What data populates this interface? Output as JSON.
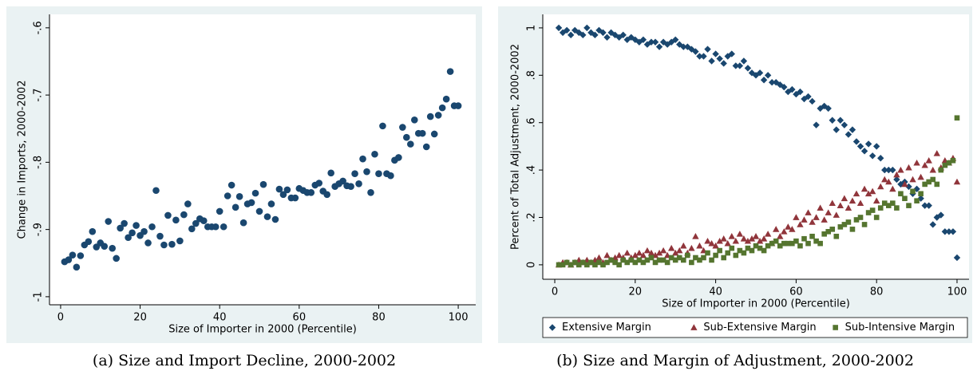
{
  "chart_data": [
    {
      "type": "scatter",
      "caption": "(a) Size and Import Decline, 2000-2002",
      "x_label": "Size of Importer in 2000 (Percentile)",
      "y_label": "Change in Imports, 2000-2002",
      "xlim": [
        -2.8,
        104.4
      ],
      "ylim": [
        -1.012,
        -0.58
      ],
      "xticks": [
        0,
        20,
        40,
        60,
        80,
        100
      ],
      "yticks": [
        {
          "value": -1,
          "label": "-1"
        },
        {
          "value": -0.9,
          "label": "-.9"
        },
        {
          "value": -0.8,
          "label": "-.8"
        },
        {
          "value": -0.7,
          "label": "-.7"
        },
        {
          "value": -0.6,
          "label": "-.6"
        }
      ],
      "grid": false,
      "series": [
        {
          "color": "#1a476f",
          "marker": "circle",
          "x": [
            1,
            2,
            3,
            4,
            5,
            6,
            7,
            8,
            9,
            10,
            11,
            12,
            13,
            14,
            15,
            16,
            17,
            18,
            19,
            20,
            21,
            22,
            23,
            24,
            25,
            26,
            27,
            28,
            29,
            30,
            31,
            32,
            33,
            34,
            35,
            36,
            37,
            38,
            39,
            40,
            41,
            42,
            43,
            44,
            45,
            46,
            47,
            48,
            49,
            50,
            51,
            52,
            53,
            54,
            55,
            56,
            57,
            58,
            59,
            60,
            61,
            62,
            63,
            64,
            65,
            66,
            67,
            68,
            69,
            70,
            71,
            72,
            73,
            74,
            75,
            76,
            77,
            78,
            79,
            80,
            81,
            82,
            83,
            84,
            85,
            86,
            87,
            88,
            89,
            90,
            91,
            92,
            93,
            94,
            95,
            96,
            97,
            98,
            99,
            100
          ],
          "values": [
            -0.948,
            -0.945,
            -0.938,
            -0.956,
            -0.939,
            -0.923,
            -0.918,
            -0.903,
            -0.926,
            -0.92,
            -0.925,
            -0.888,
            -0.928,
            -0.943,
            -0.898,
            -0.891,
            -0.912,
            -0.905,
            -0.894,
            -0.909,
            -0.903,
            -0.92,
            -0.896,
            -0.842,
            -0.91,
            -0.923,
            -0.879,
            -0.922,
            -0.886,
            -0.917,
            -0.878,
            -0.862,
            -0.899,
            -0.891,
            -0.884,
            -0.887,
            -0.896,
            -0.896,
            -0.896,
            -0.873,
            -0.896,
            -0.85,
            -0.834,
            -0.867,
            -0.851,
            -0.89,
            -0.862,
            -0.86,
            -0.846,
            -0.873,
            -0.833,
            -0.881,
            -0.862,
            -0.885,
            -0.84,
            -0.848,
            -0.841,
            -0.853,
            -0.853,
            -0.839,
            -0.842,
            -0.845,
            -0.845,
            -0.834,
            -0.831,
            -0.843,
            -0.848,
            -0.816,
            -0.836,
            -0.832,
            -0.828,
            -0.835,
            -0.836,
            -0.817,
            -0.832,
            -0.795,
            -0.814,
            -0.845,
            -0.788,
            -0.817,
            -0.746,
            -0.817,
            -0.82,
            -0.797,
            -0.793,
            -0.748,
            -0.763,
            -0.773,
            -0.737,
            -0.757,
            -0.757,
            -0.777,
            -0.732,
            -0.758,
            -0.73,
            -0.719,
            -0.706,
            -0.665,
            -0.716,
            -0.716
          ]
        }
      ]
    },
    {
      "type": "scatter",
      "caption": "(b) Size and Margin of Adjustment, 2000-2002",
      "x_label": "Size of Importer in 2000 (Percentile)",
      "y_label": "Percent of Total Adjustment, 2000-2002",
      "xlim": [
        -2.98,
        102.98
      ],
      "ylim": [
        -0.061,
        1.057
      ],
      "xticks": [
        0,
        20,
        40,
        60,
        80,
        100
      ],
      "yticks": [
        0,
        {
          "value": 0.2,
          "label": ".2"
        },
        {
          "value": 0.4,
          "label": ".4"
        },
        {
          "value": 0.6,
          "label": ".6"
        },
        {
          "value": 0.8,
          "label": ".8"
        },
        1
      ],
      "grid": false,
      "legend": "bottom",
      "series": [
        {
          "name": "Extensive Margin",
          "color": "#1a476f",
          "marker": "diamond",
          "x": [
            1,
            2,
            3,
            4,
            5,
            6,
            7,
            8,
            9,
            10,
            11,
            12,
            13,
            14,
            15,
            16,
            17,
            18,
            19,
            20,
            21,
            22,
            23,
            24,
            25,
            26,
            27,
            28,
            29,
            30,
            31,
            32,
            33,
            34,
            35,
            36,
            37,
            38,
            39,
            40,
            41,
            42,
            43,
            44,
            45,
            46,
            47,
            48,
            49,
            50,
            51,
            52,
            53,
            54,
            55,
            56,
            57,
            58,
            59,
            60,
            61,
            62,
            63,
            64,
            65,
            66,
            67,
            68,
            69,
            70,
            71,
            72,
            73,
            74,
            75,
            76,
            77,
            78,
            79,
            80,
            81,
            82,
            83,
            84,
            85,
            86,
            87,
            88,
            89,
            90,
            91,
            92,
            93,
            94,
            95,
            96,
            97,
            98,
            99,
            100
          ],
          "values": [
            1.0,
            0.98,
            0.99,
            0.97,
            0.99,
            0.98,
            0.97,
            1.0,
            0.98,
            0.97,
            0.99,
            0.98,
            0.96,
            0.98,
            0.97,
            0.96,
            0.97,
            0.95,
            0.96,
            0.95,
            0.94,
            0.95,
            0.93,
            0.94,
            0.94,
            0.92,
            0.94,
            0.93,
            0.94,
            0.95,
            0.93,
            0.92,
            0.92,
            0.91,
            0.9,
            0.88,
            0.88,
            0.91,
            0.86,
            0.89,
            0.87,
            0.85,
            0.88,
            0.89,
            0.84,
            0.84,
            0.86,
            0.83,
            0.81,
            0.8,
            0.81,
            0.78,
            0.8,
            0.77,
            0.77,
            0.76,
            0.75,
            0.73,
            0.74,
            0.72,
            0.73,
            0.7,
            0.71,
            0.69,
            0.59,
            0.66,
            0.67,
            0.66,
            0.61,
            0.57,
            0.61,
            0.59,
            0.55,
            0.57,
            0.52,
            0.5,
            0.48,
            0.51,
            0.46,
            0.5,
            0.45,
            0.4,
            0.4,
            0.4,
            0.36,
            0.34,
            0.35,
            0.33,
            0.3,
            0.32,
            0.28,
            0.25,
            0.25,
            0.17,
            0.2,
            0.21,
            0.14,
            0.14,
            0.14,
            0.03
          ]
        },
        {
          "name": "Sub-Extensive Margin",
          "color": "#90353b",
          "marker": "triangle",
          "x": [
            1,
            2,
            3,
            4,
            5,
            6,
            7,
            8,
            9,
            10,
            11,
            12,
            13,
            14,
            15,
            16,
            17,
            18,
            19,
            20,
            21,
            22,
            23,
            24,
            25,
            26,
            27,
            28,
            29,
            30,
            31,
            32,
            33,
            34,
            35,
            36,
            37,
            38,
            39,
            40,
            41,
            42,
            43,
            44,
            45,
            46,
            47,
            48,
            49,
            50,
            51,
            52,
            53,
            54,
            55,
            56,
            57,
            58,
            59,
            60,
            61,
            62,
            63,
            64,
            65,
            66,
            67,
            68,
            69,
            70,
            71,
            72,
            73,
            74,
            75,
            76,
            77,
            78,
            79,
            80,
            81,
            82,
            83,
            84,
            85,
            86,
            87,
            88,
            89,
            90,
            91,
            92,
            93,
            94,
            95,
            96,
            97,
            98,
            99,
            100
          ],
          "values": [
            0.0,
            0.01,
            0.01,
            0.0,
            0.01,
            0.02,
            0.01,
            0.02,
            0.01,
            0.02,
            0.03,
            0.01,
            0.04,
            0.02,
            0.03,
            0.04,
            0.03,
            0.05,
            0.03,
            0.04,
            0.05,
            0.04,
            0.06,
            0.05,
            0.04,
            0.05,
            0.06,
            0.04,
            0.07,
            0.05,
            0.06,
            0.08,
            0.05,
            0.07,
            0.12,
            0.08,
            0.06,
            0.1,
            0.09,
            0.08,
            0.1,
            0.11,
            0.09,
            0.12,
            0.1,
            0.13,
            0.11,
            0.1,
            0.11,
            0.12,
            0.1,
            0.11,
            0.13,
            0.09,
            0.15,
            0.12,
            0.14,
            0.16,
            0.15,
            0.2,
            0.17,
            0.19,
            0.22,
            0.18,
            0.2,
            0.24,
            0.19,
            0.22,
            0.26,
            0.21,
            0.25,
            0.28,
            0.24,
            0.27,
            0.3,
            0.26,
            0.32,
            0.3,
            0.31,
            0.27,
            0.33,
            0.36,
            0.35,
            0.32,
            0.38,
            0.4,
            0.34,
            0.41,
            0.36,
            0.43,
            0.37,
            0.42,
            0.44,
            0.4,
            0.47,
            0.41,
            0.44,
            0.43,
            0.45,
            0.35
          ]
        },
        {
          "name": "Sub-Intensive Margin",
          "color": "#55752f",
          "marker": "square",
          "x": [
            1,
            2,
            3,
            4,
            5,
            6,
            7,
            8,
            9,
            10,
            11,
            12,
            13,
            14,
            15,
            16,
            17,
            18,
            19,
            20,
            21,
            22,
            23,
            24,
            25,
            26,
            27,
            28,
            29,
            30,
            31,
            32,
            33,
            34,
            35,
            36,
            37,
            38,
            39,
            40,
            41,
            42,
            43,
            44,
            45,
            46,
            47,
            48,
            49,
            50,
            51,
            52,
            53,
            54,
            55,
            56,
            57,
            58,
            59,
            60,
            61,
            62,
            63,
            64,
            65,
            66,
            67,
            68,
            69,
            70,
            71,
            72,
            73,
            74,
            75,
            76,
            77,
            78,
            79,
            80,
            81,
            82,
            83,
            84,
            85,
            86,
            87,
            88,
            89,
            90,
            91,
            92,
            93,
            94,
            95,
            96,
            97,
            98,
            99,
            100
          ],
          "values": [
            0.0,
            0.0,
            0.01,
            0.0,
            0.01,
            0.0,
            0.01,
            0.0,
            0.01,
            0.0,
            0.01,
            0.0,
            0.01,
            0.02,
            0.01,
            0.0,
            0.02,
            0.01,
            0.02,
            0.01,
            0.02,
            0.01,
            0.02,
            0.03,
            0.01,
            0.02,
            0.02,
            0.01,
            0.03,
            0.02,
            0.03,
            0.02,
            0.04,
            0.01,
            0.03,
            0.02,
            0.03,
            0.05,
            0.02,
            0.04,
            0.06,
            0.03,
            0.05,
            0.07,
            0.04,
            0.06,
            0.05,
            0.07,
            0.06,
            0.08,
            0.07,
            0.06,
            0.08,
            0.09,
            0.1,
            0.08,
            0.09,
            0.09,
            0.09,
            0.1,
            0.08,
            0.11,
            0.09,
            0.12,
            0.1,
            0.09,
            0.13,
            0.14,
            0.15,
            0.12,
            0.16,
            0.17,
            0.18,
            0.15,
            0.19,
            0.2,
            0.17,
            0.22,
            0.23,
            0.2,
            0.24,
            0.26,
            0.25,
            0.26,
            0.24,
            0.3,
            0.28,
            0.25,
            0.31,
            0.27,
            0.3,
            0.34,
            0.35,
            0.36,
            0.34,
            0.4,
            0.42,
            0.43,
            0.44,
            0.62
          ]
        }
      ]
    }
  ]
}
